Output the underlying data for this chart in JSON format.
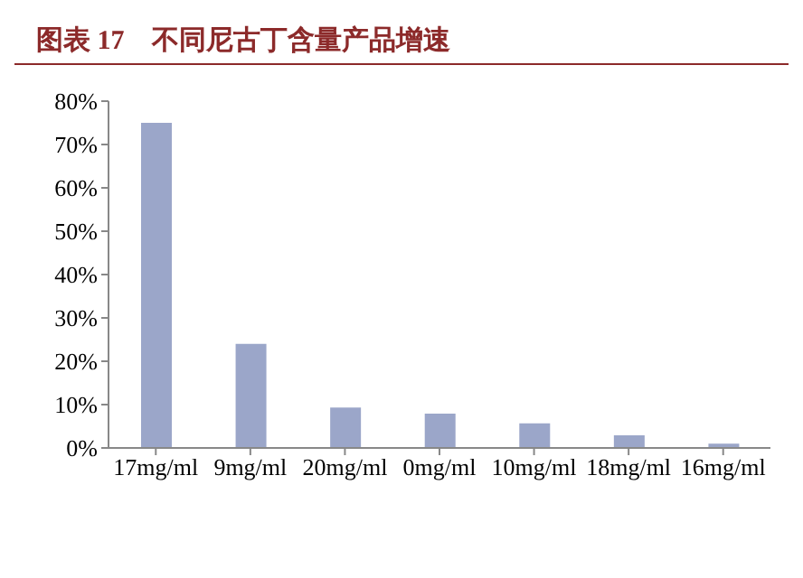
{
  "chart_data": {
    "type": "bar",
    "title": "图表 17　不同尼古丁含量产品增速",
    "categories": [
      "17mg/ml",
      "9mg/ml",
      "20mg/ml",
      "0mg/ml",
      "10mg/ml",
      "18mg/ml",
      "16mg/ml"
    ],
    "values": [
      75,
      24,
      9.3,
      7.9,
      5.7,
      2.9,
      1
    ],
    "color": "#9ba6c9",
    "ylim": [
      0,
      80
    ],
    "yticks": [
      {
        "value": 0,
        "label": "0%"
      },
      {
        "value": 10,
        "label": "10%"
      },
      {
        "value": 20,
        "label": "20%"
      },
      {
        "value": 30,
        "label": "30%"
      },
      {
        "value": 40,
        "label": "40%"
      },
      {
        "value": 50,
        "label": "50%"
      },
      {
        "value": 60,
        "label": "60%"
      },
      {
        "value": 70,
        "label": "70%"
      },
      {
        "value": 80,
        "label": "80%"
      }
    ]
  }
}
